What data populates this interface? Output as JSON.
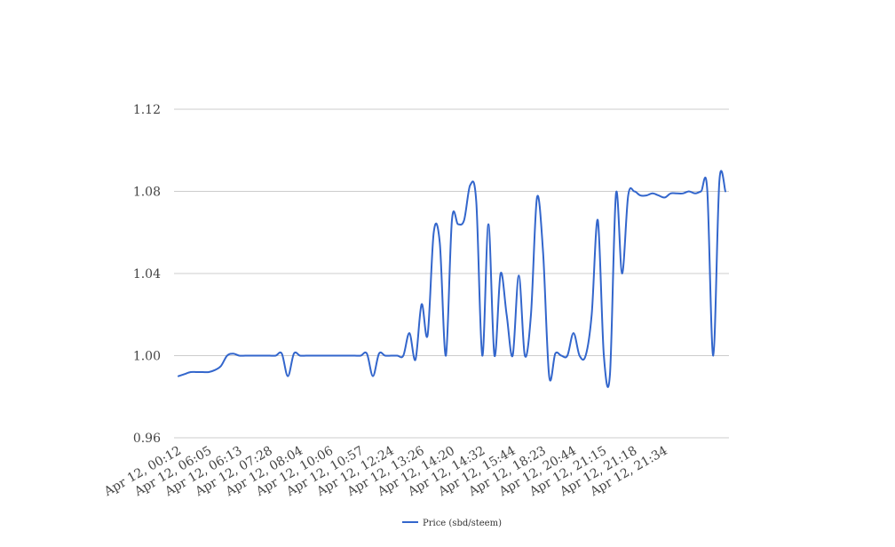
{
  "chart_data": {
    "type": "line",
    "title": "",
    "xlabel": "",
    "ylabel": "",
    "ylim": [
      0.96,
      1.12
    ],
    "y_ticks": [
      "0.96",
      "1.00",
      "1.04",
      "1.08",
      "1.12"
    ],
    "y_tick_values": [
      0.96,
      1.0,
      1.04,
      1.08,
      1.12
    ],
    "grid": true,
    "legend_position": "bottom",
    "x_ticks": [
      "Apr 12, 00:12",
      "Apr 12, 06:05",
      "Apr 12, 06:13",
      "Apr 12, 07:28",
      "Apr 12, 08:04",
      "Apr 12, 10:06",
      "Apr 12, 10:57",
      "Apr 12, 12:24",
      "Apr 12, 13:26",
      "Apr 12, 14:20",
      "Apr 12, 14:32",
      "Apr 12, 15:44",
      "Apr 12, 18:23",
      "Apr 12, 20:44",
      "Apr 12, 21:15",
      "Apr 12, 21:18",
      "Apr 12, 21:34"
    ],
    "x_tick_positions": [
      0,
      5,
      10,
      15,
      20,
      25,
      30,
      35,
      40,
      45,
      50,
      55,
      60,
      65,
      70,
      75,
      80
    ],
    "series": [
      {
        "name": "Price (sbd/steem)",
        "color": "#3366cc",
        "values": [
          0.99,
          0.991,
          0.992,
          0.992,
          0.992,
          0.992,
          0.993,
          0.995,
          1.0,
          1.001,
          1.0,
          1.0,
          1.0,
          1.0,
          1.0,
          1.0,
          1.0,
          1.001,
          0.99,
          1.001,
          1.0,
          1.0,
          1.0,
          1.0,
          1.0,
          1.0,
          1.0,
          1.0,
          1.0,
          1.0,
          1.0,
          1.001,
          0.99,
          1.001,
          1.0,
          1.0,
          1.0,
          1.0,
          1.011,
          0.998,
          1.025,
          1.01,
          1.06,
          1.055,
          1.0,
          1.066,
          1.064,
          1.066,
          1.083,
          1.075,
          1.0,
          1.064,
          1.0,
          1.04,
          1.02,
          1.0,
          1.039,
          1.0,
          1.02,
          1.077,
          1.05,
          0.99,
          1.001,
          1.0,
          1.0,
          1.011,
          1.0,
          1.0,
          1.02,
          1.066,
          1.0,
          0.991,
          1.079,
          1.04,
          1.078,
          1.08,
          1.078,
          1.078,
          1.079,
          1.078,
          1.077,
          1.079,
          1.079,
          1.079,
          1.08,
          1.079,
          1.08,
          1.081,
          1.0,
          1.085,
          1.08
        ]
      }
    ]
  }
}
